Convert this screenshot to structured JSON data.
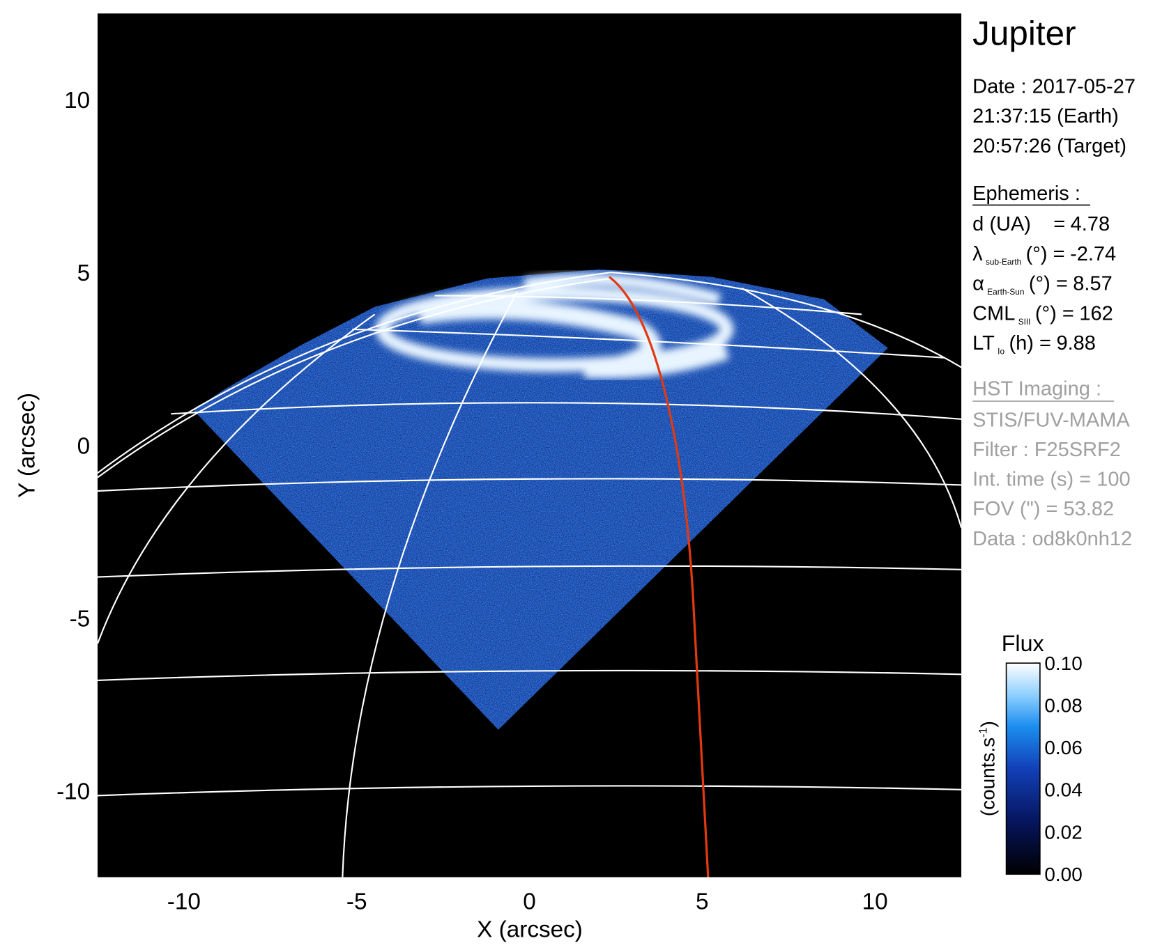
{
  "chart_data": {
    "type": "image",
    "xlabel": "X (arcsec)",
    "ylabel": "Y (arcsec)",
    "xlim": [
      -12.5,
      12.5
    ],
    "ylim": [
      -12.5,
      12.5
    ],
    "xticks": [
      -10,
      -5,
      0,
      5,
      10
    ],
    "yticks": [
      -10,
      -5,
      0,
      5,
      10
    ],
    "grid": false,
    "colorbar": {
      "title": "Flux",
      "label_parts": [
        "(counts.s",
        "-1",
        ")"
      ],
      "lim": [
        0,
        0.1
      ],
      "ticks": [
        {
          "value": 0,
          "label": "0.00"
        },
        {
          "value": 0.02,
          "label": "0.02"
        },
        {
          "value": 0.04,
          "label": "0.04"
        },
        {
          "value": 0.06,
          "label": "0.06"
        },
        {
          "value": 0.08,
          "label": "0.08"
        },
        {
          "value": 0.1,
          "label": "0.10"
        }
      ]
    }
  },
  "info": {
    "title": "Jupiter",
    "date_lines": [
      "Date : 2017-05-27",
      "21:37:15 (Earth)",
      "20:57:26 (Target)"
    ],
    "ephemeris": {
      "title": "Ephemeris :",
      "items": [
        {
          "symbol": "d (UA)",
          "unit": "=",
          "value": 4.78
        },
        {
          "symbol": "λ",
          "sub": "sub-Earth",
          "unit": "(°) =",
          "value": -2.74
        },
        {
          "symbol": "α",
          "sub": "Earth-Sun",
          "unit": "(°) =",
          "value": 8.57
        },
        {
          "symbol": "CML",
          "sub": "SIII",
          "unit": "(°) =",
          "value": 162
        },
        {
          "symbol": "LT",
          "sub": "Io",
          "unit": "(h) =",
          "value": 9.88
        }
      ]
    },
    "imaging": {
      "title": "HST Imaging :",
      "lines": [
        "STIS/FUV-MAMA",
        "Filter : F25SRF2",
        "Int. time (s) = 100",
        "FOV (\") = 53.82",
        "Data : od8k0nh12"
      ]
    }
  }
}
